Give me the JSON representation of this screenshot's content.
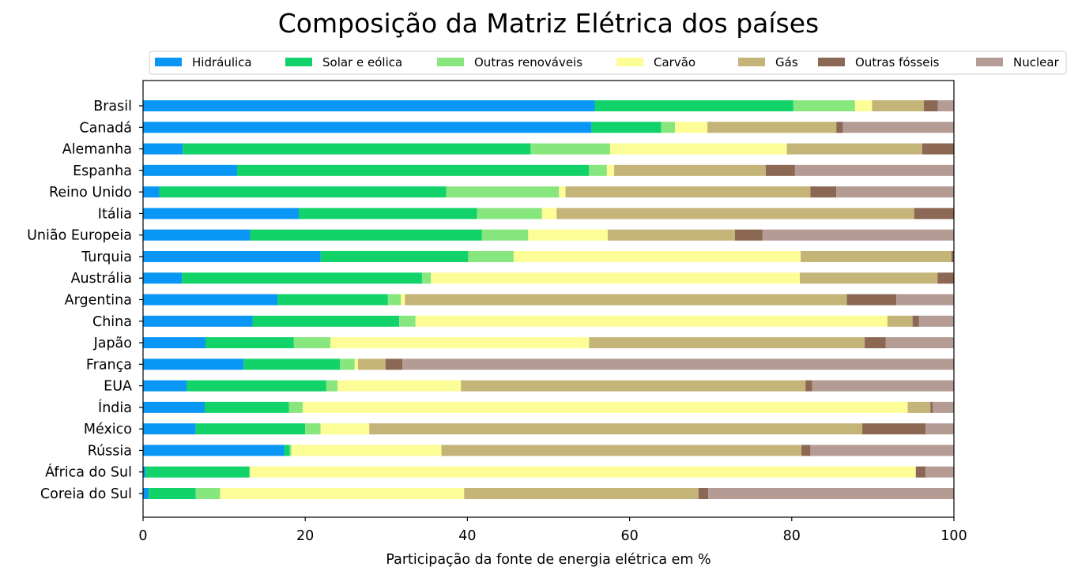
{
  "chart_data": {
    "type": "bar",
    "orientation": "horizontal",
    "stacked": true,
    "title": "Composição da Matriz Elétrica dos países",
    "xlabel": "Participação da fonte de energia elétrica em %",
    "ylabel": "",
    "xlim": [
      0,
      100
    ],
    "xticks": [
      "0",
      "20",
      "40",
      "60",
      "80",
      "100"
    ],
    "grid": false,
    "legend_position": "top",
    "categories": [
      "Brasil",
      "Canadá",
      "Alemanha",
      "Espanha",
      "Reino Unido",
      "Itália",
      "União Europeia",
      "Turquia",
      "Austrália",
      "Argentina",
      "China",
      "Japão",
      "França",
      "EUA",
      "Índia",
      "México",
      "Rússia",
      "África do Sul",
      "Coreia do Sul"
    ],
    "series": [
      {
        "name": "Hidráulica",
        "color": "#0a96f5",
        "values": [
          55.7,
          55.3,
          4.9,
          11.6,
          2.0,
          19.2,
          13.2,
          21.9,
          4.8,
          16.6,
          13.5,
          7.7,
          12.4,
          5.4,
          7.6,
          6.5,
          17.4,
          0.3,
          0.7
        ]
      },
      {
        "name": "Solar e eólica",
        "color": "#12d26a",
        "values": [
          24.5,
          8.6,
          42.9,
          43.4,
          35.4,
          22.0,
          28.6,
          18.2,
          29.6,
          13.6,
          18.1,
          10.9,
          11.9,
          17.2,
          10.4,
          13.5,
          0.7,
          12.8,
          5.8
        ]
      },
      {
        "name": "Outras renováveis",
        "color": "#88e67e",
        "values": [
          7.6,
          1.7,
          9.8,
          2.2,
          13.9,
          8.0,
          5.7,
          5.6,
          1.1,
          1.6,
          2.0,
          4.5,
          1.8,
          1.4,
          1.7,
          1.9,
          0.2,
          0.1,
          3.0
        ]
      },
      {
        "name": "Carvão",
        "color": "#fcfd96",
        "values": [
          2.1,
          4.0,
          21.8,
          0.9,
          0.8,
          1.8,
          9.8,
          35.4,
          45.5,
          0.5,
          58.2,
          31.9,
          0.4,
          15.2,
          74.6,
          6.0,
          18.5,
          82.1,
          30.1
        ]
      },
      {
        "name": "Gás",
        "color": "#c4b478",
        "values": [
          6.4,
          15.9,
          16.7,
          18.7,
          30.2,
          44.1,
          15.7,
          18.6,
          17.0,
          54.5,
          3.1,
          34.0,
          3.4,
          42.5,
          2.8,
          60.8,
          44.4,
          0.0,
          28.9
        ]
      },
      {
        "name": "Outras fósseis",
        "color": "#8b6754",
        "values": [
          1.7,
          0.8,
          3.9,
          3.6,
          3.2,
          4.9,
          3.4,
          0.3,
          2.0,
          6.1,
          0.8,
          2.6,
          2.1,
          0.8,
          0.3,
          7.8,
          1.1,
          1.2,
          1.2
        ]
      },
      {
        "name": "Nuclear",
        "color": "#b49c94",
        "values": [
          2.0,
          13.7,
          0.0,
          19.6,
          14.5,
          0.0,
          23.6,
          0.0,
          0.0,
          7.1,
          4.3,
          8.4,
          68.0,
          17.5,
          2.6,
          3.5,
          17.7,
          3.5,
          30.3
        ]
      }
    ]
  }
}
